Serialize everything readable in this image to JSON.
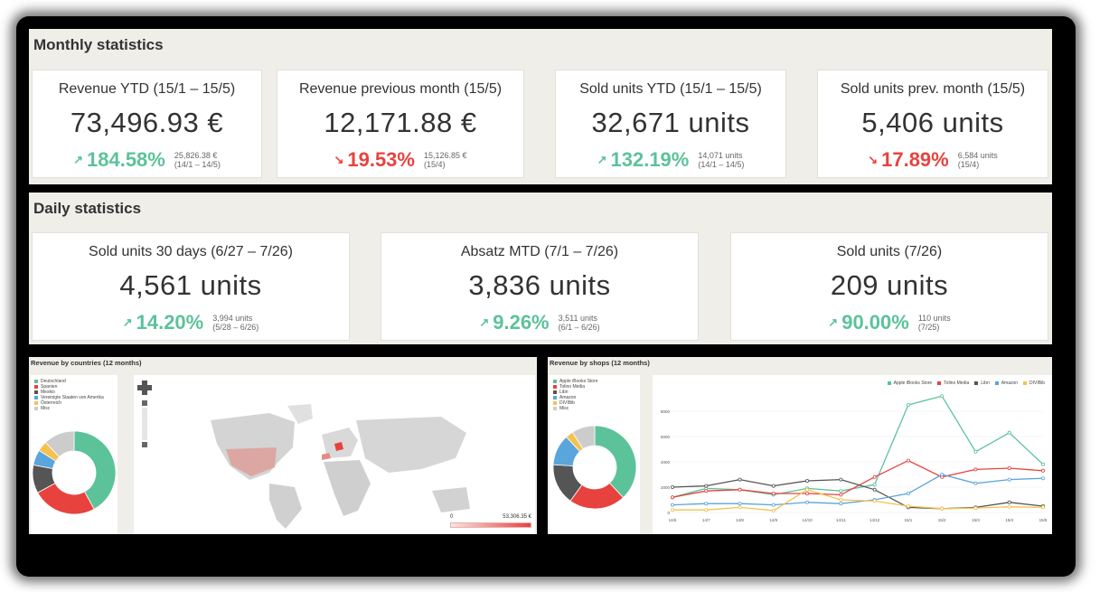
{
  "monthly": {
    "title": "Monthly statistics",
    "cards": [
      {
        "title": "Revenue YTD (15/1 – 15/5)",
        "value": "73,496.93 €",
        "pct": "184.58%",
        "dir": "up",
        "cmp1": "25,826.38 €",
        "cmp2": "(14/1 – 14/5)"
      },
      {
        "title": "Revenue previous month (15/5)",
        "value": "12,171.88 €",
        "pct": "19.53%",
        "dir": "down",
        "cmp1": "15,126.85 €",
        "cmp2": "(15/4)"
      },
      {
        "title": "Sold units YTD (15/1 – 15/5)",
        "value": "32,671 units",
        "pct": "132.19%",
        "dir": "up",
        "cmp1": "14,071 units",
        "cmp2": "(14/1 – 14/5)"
      },
      {
        "title": "Sold units prev. month (15/5)",
        "value": "5,406 units",
        "pct": "17.89%",
        "dir": "down",
        "cmp1": "6,584 units",
        "cmp2": "(15/4)"
      }
    ]
  },
  "daily": {
    "title": "Daily statistics",
    "cards": [
      {
        "title": "Sold units 30 days (6/27 – 7/26)",
        "value": "4,561 units",
        "pct": "14.20%",
        "dir": "up",
        "cmp1": "3,994 units",
        "cmp2": "(5/28 – 6/26)"
      },
      {
        "title": "Absatz MTD (7/1 – 7/26)",
        "value": "3,836 units",
        "pct": "9.26%",
        "dir": "up",
        "cmp1": "3,511 units",
        "cmp2": "(6/1 – 6/26)"
      },
      {
        "title": "Sold units (7/26)",
        "value": "209 units",
        "pct": "90.00%",
        "dir": "up",
        "cmp1": "110 units",
        "cmp2": "(7/25)"
      }
    ]
  },
  "icons": {
    "up": "↗",
    "down": "↘"
  },
  "colors": {
    "up": "#5cc29a",
    "down": "#e8423f"
  },
  "countries_panel": {
    "title": "Revenue by countries (12 months)",
    "map_scale_min": "0",
    "map_scale_max": "53,306.35 €",
    "legend": [
      {
        "label": "Deutschland",
        "color": "#5cc29a"
      },
      {
        "label": "Spanien",
        "color": "#e8423f"
      },
      {
        "label": "Mexiko",
        "color": "#555555"
      },
      {
        "label": "Vereinigte Staaten von Amerika",
        "color": "#5aa5dc"
      },
      {
        "label": "Österreich",
        "color": "#f4c24e"
      },
      {
        "label": "Misc",
        "color": "#cccccc"
      }
    ],
    "donut": [
      42,
      25,
      11,
      6,
      4,
      12
    ]
  },
  "shops_panel": {
    "title": "Revenue by shops (12 months)",
    "legend": [
      {
        "label": "Apple iBooks Store",
        "color": "#5cc29a"
      },
      {
        "label": "Tolino Media",
        "color": "#e8423f"
      },
      {
        "label": "Libri",
        "color": "#555555"
      },
      {
        "label": "Amazon",
        "color": "#5aa5dc"
      },
      {
        "label": "DIVIBib",
        "color": "#f4c24e"
      },
      {
        "label": "Misc",
        "color": "#cccccc"
      }
    ],
    "donut": [
      38,
      22,
      16,
      12,
      3,
      9
    ]
  },
  "chart_data": {
    "type": "line",
    "x": [
      "14/6",
      "14/7",
      "14/8",
      "14/9",
      "14/10",
      "14/11",
      "14/12",
      "15/1",
      "15/2",
      "15/3",
      "15/4",
      "15/5"
    ],
    "yticks": [
      "0",
      "2000",
      "4000",
      "6000",
      "8000"
    ],
    "ylim": [
      0,
      9000
    ],
    "series": [
      {
        "name": "Apple iBooks Store",
        "color": "#5cc29a",
        "values": [
          1200,
          1900,
          1800,
          1400,
          1900,
          1700,
          2200,
          8500,
          9200,
          4800,
          6300,
          3800
        ]
      },
      {
        "name": "Tolino Media",
        "color": "#e8423f",
        "values": [
          1200,
          1700,
          1800,
          1500,
          1500,
          1400,
          2800,
          4100,
          2800,
          3400,
          3500,
          3300
        ]
      },
      {
        "name": "Libri",
        "color": "#555555",
        "values": [
          2000,
          2100,
          2600,
          2100,
          2500,
          2600,
          1800,
          400,
          300,
          400,
          800,
          500
        ]
      },
      {
        "name": "Amazon",
        "color": "#5aa5dc",
        "values": [
          600,
          700,
          700,
          600,
          800,
          700,
          1000,
          1500,
          3000,
          2300,
          2600,
          2700
        ]
      },
      {
        "name": "DIVIBib",
        "color": "#f4c24e",
        "values": [
          200,
          200,
          400,
          150,
          1800,
          1000,
          900,
          500,
          300,
          350,
          450,
          400
        ]
      }
    ]
  }
}
